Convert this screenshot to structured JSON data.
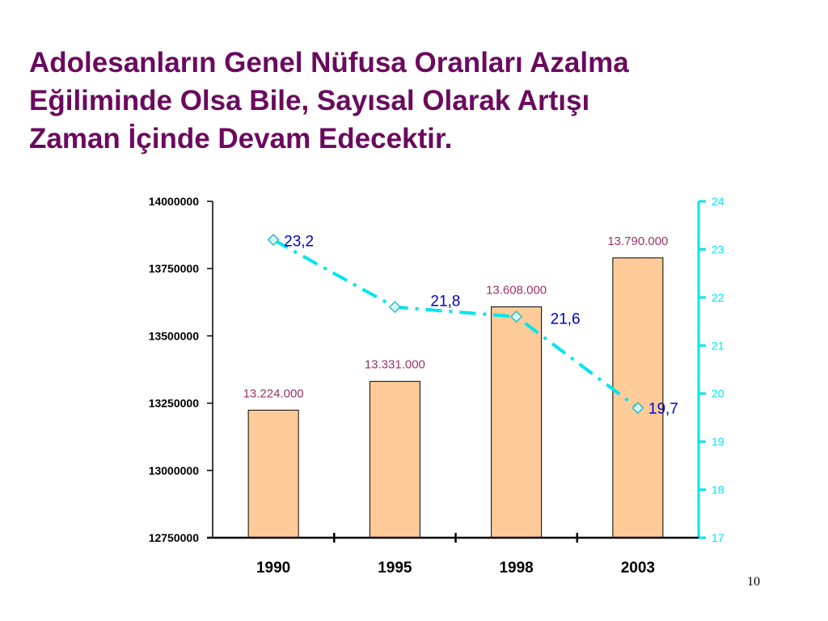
{
  "slide": {
    "title_lines": [
      "Adolesanların Genel Nüfusa Oranları Azalma",
      "Eğiliminde Olsa Bile, Sayısal Olarak Artışı",
      "Zaman İçinde Devam Edecektir."
    ],
    "page_number": "10"
  },
  "chart_data": {
    "type": "bar",
    "categories": [
      "1990",
      "1995",
      "1998",
      "2003"
    ],
    "series": [
      {
        "type": "bar",
        "values": [
          13224000,
          13331000,
          13608000,
          13790000
        ],
        "labels": [
          "13.224.000",
          "13.331.000",
          "13.608.000",
          "13.790.000"
        ],
        "color": "#ffcc99",
        "axis": "left"
      },
      {
        "type": "line",
        "values": [
          23.2,
          21.8,
          21.6,
          19.7
        ],
        "labels": [
          "23,2",
          "21,8",
          "21,6",
          "19,7"
        ],
        "color": "#00e5ee",
        "marker": "diamond",
        "axis": "right"
      }
    ],
    "y_left": {
      "min": 12750000,
      "max": 14000000,
      "ticks": [
        14000000,
        13750000,
        13500000,
        13250000,
        13000000,
        12750000
      ],
      "tick_labels": [
        "14000000",
        "13750000",
        "13500000",
        "13250000",
        "13000000",
        "12750000"
      ]
    },
    "y_right": {
      "min": 17,
      "max": 24,
      "ticks": [
        24,
        23,
        22,
        21,
        20,
        19,
        18,
        17
      ],
      "tick_labels": [
        "24",
        "23",
        "22",
        "21",
        "20",
        "19",
        "18",
        "17"
      ],
      "color": "#00e5ee"
    },
    "bar_label_color": "#993366",
    "line_label_color": "#0000cc",
    "grid": false,
    "legend": "none"
  }
}
